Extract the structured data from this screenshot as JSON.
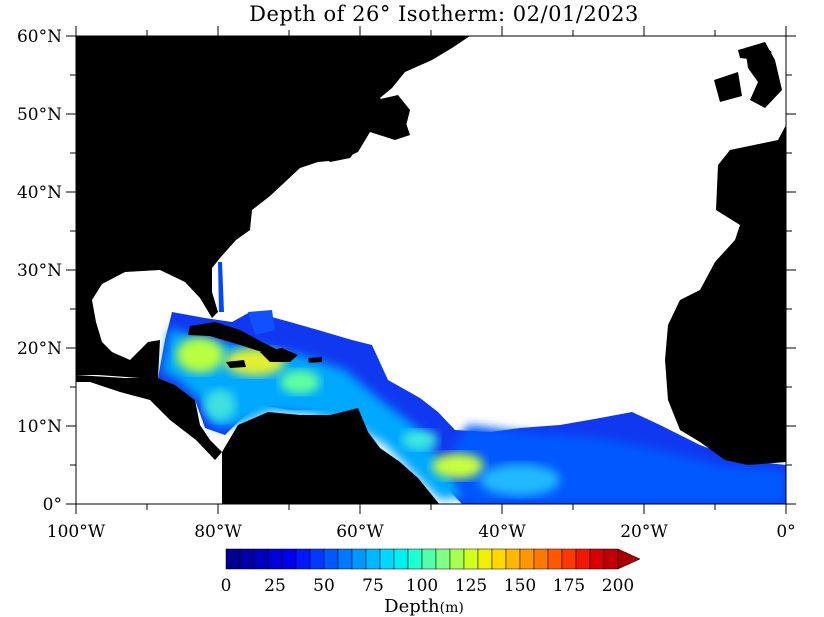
{
  "map": {
    "title": "Depth of 26° Isotherm: 02/01/2023",
    "lat_labels": [
      "60°N",
      "50°N",
      "40°N",
      "30°N",
      "20°N",
      "10°N",
      "0°"
    ],
    "lon_labels": [
      "100°W",
      "80°W",
      "60°W",
      "40°W",
      "20°W",
      "0°"
    ],
    "land_color": "#000000",
    "background_color": "#ffffff"
  },
  "colorbar": {
    "tick_labels": [
      "0",
      "25",
      "50",
      "75",
      "100",
      "125",
      "150",
      "175",
      "200"
    ],
    "label": "Depth",
    "unit": "(m)",
    "range": [
      0,
      200
    ],
    "extend": "max",
    "colors": [
      "#000090",
      "#0000a8",
      "#0000c0",
      "#0000d8",
      "#0000f0",
      "#0018ff",
      "#0038ff",
      "#0058ff",
      "#0078ff",
      "#0098ff",
      "#00b8ff",
      "#00d8ff",
      "#00f0f0",
      "#20ffd0",
      "#50ffa8",
      "#80ff80",
      "#a8ff50",
      "#d0ff20",
      "#f0f000",
      "#ffd800",
      "#ffb800",
      "#ff9800",
      "#ff7800",
      "#ff5800",
      "#ff3800",
      "#f01800",
      "#d80000",
      "#c00000",
      "#a80000"
    ]
  }
}
